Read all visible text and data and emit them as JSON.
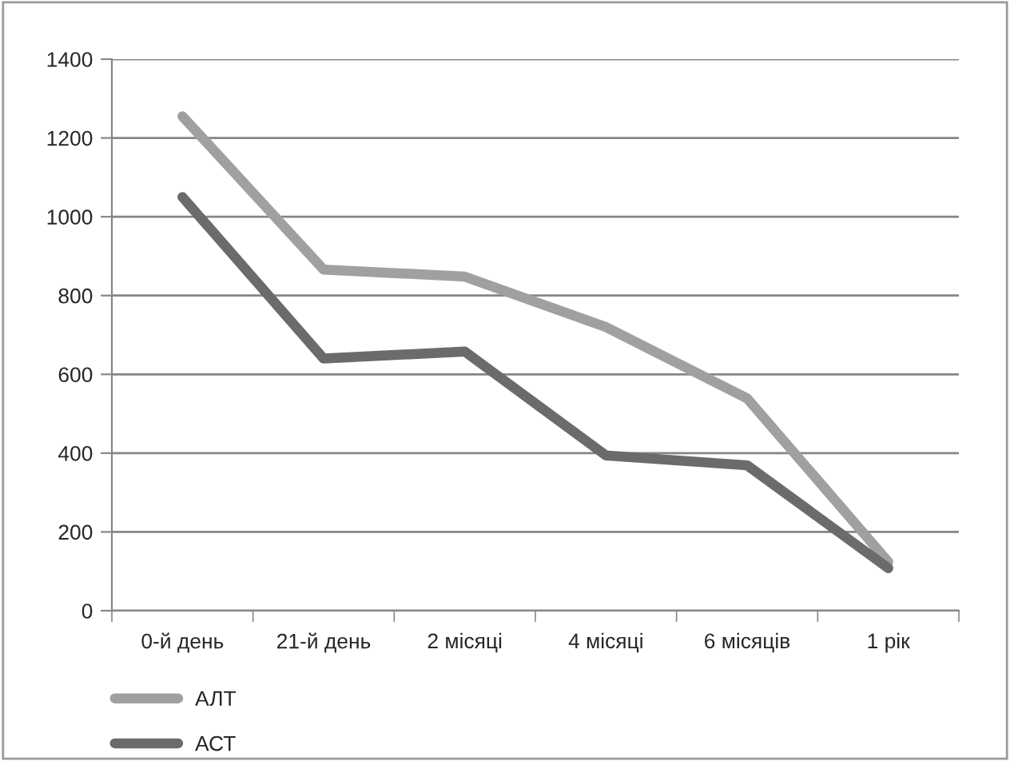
{
  "chart_data": {
    "type": "line",
    "categories": [
      "0-й день",
      "21-й день",
      "2 місяці",
      "4 місяці",
      "6 місяців",
      "1 рік"
    ],
    "series": [
      {
        "name": "АЛТ",
        "color": "#a0a0a2",
        "values": [
          1255,
          866,
          848,
          720,
          539,
          124
        ]
      },
      {
        "name": "АСТ",
        "color": "#6b6b6d",
        "values": [
          1050,
          640,
          658,
          394,
          369,
          108
        ]
      }
    ],
    "ylim": [
      0,
      1400
    ],
    "yticks": [
      0,
      200,
      400,
      600,
      800,
      1000,
      1200,
      1400
    ],
    "grid": "y",
    "legend": "bottom",
    "marker": "none",
    "line_style": "solid"
  }
}
